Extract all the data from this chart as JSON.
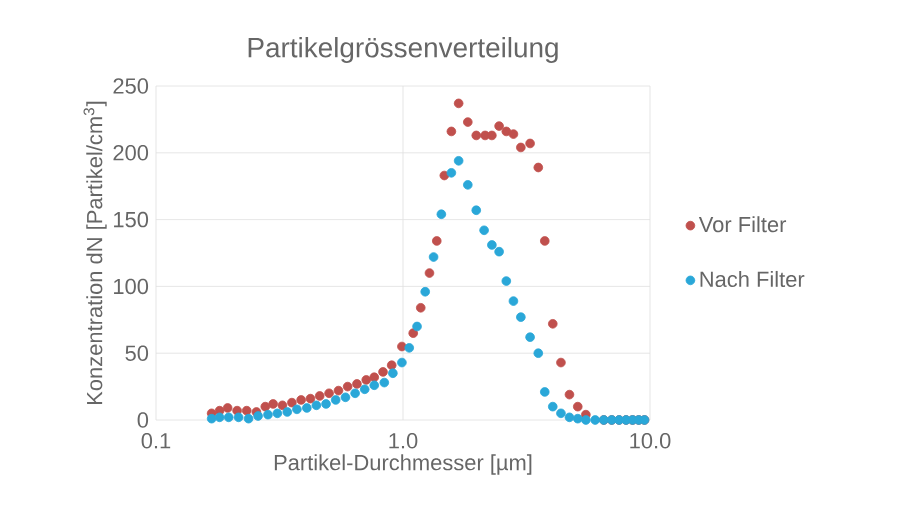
{
  "chart_data": {
    "type": "scatter",
    "title": "Partikelgrössenverteilung",
    "xlabel": "Partikel-Durchmesser [µm]",
    "ylabel": "Konzentration dN [Partikel/cm$^{3}$]",
    "log": "x",
    "xlim": [
      0.1,
      10
    ],
    "xticks": [
      {
        "value": 0.1,
        "label": "0.1"
      },
      {
        "value": 1,
        "label": "1.0"
      },
      {
        "value": 10,
        "label": "10.0"
      }
    ],
    "ylim": [
      0,
      250
    ],
    "yticks": [
      0,
      50,
      100,
      150,
      200,
      250
    ],
    "grid": true,
    "legend": "right",
    "marker": "circle",
    "series": [
      {
        "name": "Vor Filter",
        "color": "#c0504d",
        "x": [
          0.168,
          0.181,
          0.195,
          0.213,
          0.233,
          0.255,
          0.277,
          0.298,
          0.325,
          0.355,
          0.387,
          0.422,
          0.46,
          0.502,
          0.548,
          0.597,
          0.651,
          0.71,
          0.765,
          0.83,
          0.9,
          0.99,
          1.1,
          1.18,
          1.28,
          1.37,
          1.47,
          1.57,
          1.68,
          1.83,
          1.98,
          2.15,
          2.29,
          2.45,
          2.62,
          2.8,
          3.0,
          3.27,
          3.53,
          3.75,
          4.04,
          4.36,
          4.72,
          5.1,
          5.5,
          6.0,
          6.5,
          7.0,
          7.5,
          8.0,
          8.5,
          9.0,
          9.5
        ],
        "values": [
          5,
          7,
          9,
          7,
          7,
          6,
          10,
          12,
          11,
          13,
          15,
          16,
          18,
          20,
          22,
          25,
          27,
          30,
          32,
          36,
          41,
          55,
          65,
          84,
          110,
          134,
          183,
          216,
          237,
          223,
          213,
          213,
          213,
          220,
          216,
          214,
          204,
          207,
          189,
          134,
          72,
          43,
          19,
          10,
          4,
          null,
          0,
          0,
          0,
          0,
          0,
          0,
          0
        ]
      },
      {
        "name": "Nach Filter",
        "color": "#2aa7d8",
        "x": [
          0.168,
          0.181,
          0.197,
          0.216,
          0.237,
          0.259,
          0.284,
          0.31,
          0.34,
          0.372,
          0.408,
          0.446,
          0.488,
          0.534,
          0.585,
          0.64,
          0.7,
          0.765,
          0.84,
          0.91,
          0.99,
          1.06,
          1.14,
          1.23,
          1.33,
          1.43,
          1.57,
          1.68,
          1.83,
          1.98,
          2.13,
          2.29,
          2.45,
          2.62,
          2.8,
          3.0,
          3.27,
          3.53,
          3.75,
          4.04,
          4.36,
          4.72,
          5.1,
          5.5,
          6.0,
          6.5,
          7.0,
          7.5,
          8.0,
          8.5,
          9.0,
          9.5
        ],
        "values": [
          1,
          2,
          2,
          2,
          1,
          3,
          4,
          5,
          6,
          8,
          9,
          11,
          12,
          15,
          17,
          20,
          23,
          26,
          28,
          35,
          43,
          54,
          70,
          96,
          122,
          154,
          185,
          194,
          176,
          157,
          142,
          131,
          126,
          104,
          89,
          77,
          62,
          50,
          21,
          10,
          5,
          2,
          1,
          0,
          0,
          0,
          0,
          0,
          0,
          0,
          0,
          0
        ]
      }
    ]
  }
}
